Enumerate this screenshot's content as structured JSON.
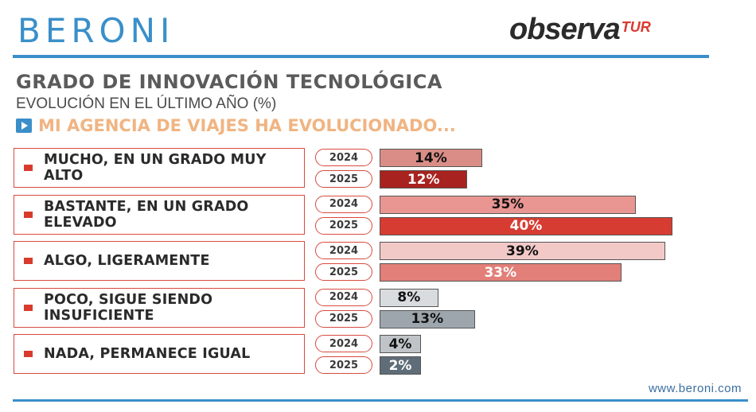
{
  "brand": {
    "left_logo": "BERONI",
    "right_logo_main": "observa",
    "right_logo_sup": "TUR"
  },
  "header": {
    "title": "GRADO DE INNOVACIÓN TECNOLÓGICA",
    "subtitle": "EVOLUCIÓN EN EL ÚLTIMO AÑO  (%)",
    "question": "MI AGENCIA DE VIAJES HA EVOLUCIONADO..."
  },
  "footer": {
    "url": "www.beroni.com"
  },
  "chart_data": {
    "type": "bar",
    "orientation": "horizontal",
    "title": "GRADO DE INNOVACIÓN TECNOLÓGICA",
    "categories": [
      "MUCHO, EN UN GRADO MUY ALTO",
      "BASTANTE, EN UN GRADO ELEVADO",
      "ALGO, LIGERAMENTE",
      "POCO, SIGUE SIENDO INSUFICIENTE",
      "NADA, PERMANECE IGUAL"
    ],
    "series": [
      {
        "name": "2024",
        "values": [
          14,
          35,
          39,
          8,
          4
        ]
      },
      {
        "name": "2025",
        "values": [
          12,
          40,
          33,
          13,
          2
        ]
      }
    ],
    "value_labels": [
      [
        "14%",
        "12%"
      ],
      [
        "35%",
        "40%"
      ],
      [
        "39%",
        "33%"
      ],
      [
        "8%",
        "13%"
      ],
      [
        "4%",
        "2%"
      ]
    ],
    "colors": [
      {
        "2024": "#d98d86",
        "2025": "#a8231f",
        "text2024": "#111111",
        "text2025": "#ffffff"
      },
      {
        "2024": "#e99693",
        "2025": "#d63c32",
        "text2024": "#111111",
        "text2025": "#ffffff"
      },
      {
        "2024": "#f2c9c7",
        "2025": "#e27f78",
        "text2024": "#111111",
        "text2025": "#ffffff"
      },
      {
        "2024": "#d8dcdf",
        "2025": "#9ea6ad",
        "text2024": "#111111",
        "text2025": "#111111"
      },
      {
        "2024": "#bfc4c8",
        "2025": "#5f6d78",
        "text2024": "#111111",
        "text2025": "#ffffff"
      }
    ],
    "xlim": [
      0,
      40
    ],
    "unit": "%"
  }
}
